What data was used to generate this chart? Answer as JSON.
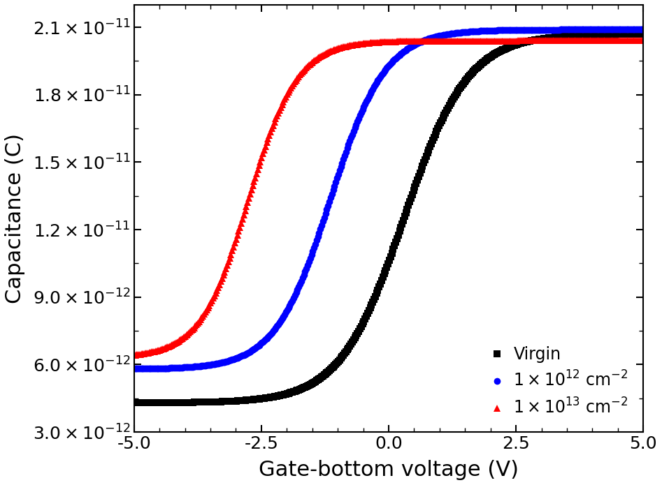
{
  "xlabel": "Gate-bottom voltage (V)",
  "ylabel": "Capacitance (C)",
  "xlim": [
    -5.0,
    5.0
  ],
  "ylim": [
    3e-12,
    2.2e-11
  ],
  "xticks": [
    -5.0,
    -2.5,
    0.0,
    2.5,
    5.0
  ],
  "yticks": [
    3e-12,
    6e-12,
    9e-12,
    1.2e-11,
    1.5e-11,
    1.8e-11,
    2.1e-11
  ],
  "series": [
    {
      "label": "Virgin",
      "color": "#000000",
      "marker": "s",
      "marker_size": 6.5,
      "C_min": 4.3e-12,
      "C_max": 2.07e-11,
      "V_mid": 0.3,
      "k": 1.6
    },
    {
      "label": "1\\times10^{12} cm^{-2}",
      "color": "#0000ff",
      "marker": "o",
      "marker_size": 7.0,
      "C_min": 5.8e-12,
      "C_max": 2.09e-11,
      "V_mid": -1.15,
      "k": 1.85
    },
    {
      "label": "1\\times10^{13} cm^{-2}",
      "color": "#ff0000",
      "marker": "^",
      "marker_size": 7.0,
      "C_min": 6.3e-12,
      "C_max": 2.04e-11,
      "V_mid": -2.75,
      "k": 2.1
    }
  ],
  "background_color": "#ffffff",
  "axis_label_fontsize": 22,
  "tick_fontsize": 18,
  "legend_fontsize": 17
}
